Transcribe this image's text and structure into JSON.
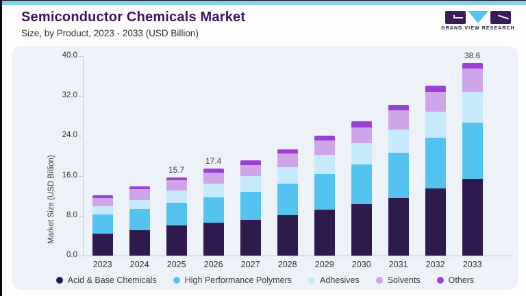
{
  "page": {
    "top_strip_color": "#85cfed",
    "card_bg": "#edf2f8",
    "title_color": "#3f1265"
  },
  "header": {
    "title": "Semiconductor Chemicals Market",
    "subtitle": "Size, by Product, 2023 - 2033 (USD Billion)"
  },
  "logo": {
    "text": "GRAND VIEW RESEARCH",
    "mark_dark_color": "#3a1d56",
    "mark_blue_color": "#56c4ef"
  },
  "chart_data": {
    "type": "bar",
    "stacked": true,
    "title": "Semiconductor Chemicals Market",
    "subtitle": "Size, by Product, 2023 - 2033 (USD Billion)",
    "xlabel": "",
    "ylabel": "Market Size (USD Billion)",
    "ylim": [
      0,
      40
    ],
    "ytick_labels": [
      "0.0",
      "8.0",
      "16.0",
      "24.0",
      "32.0",
      "40.0"
    ],
    "grid": false,
    "legend_position": "bottom",
    "categories": [
      "2023",
      "2024",
      "2025",
      "2026",
      "2027",
      "2028",
      "2029",
      "2030",
      "2031",
      "2032",
      "2033"
    ],
    "series": [
      {
        "name": "Acid & Base Chemicals",
        "color": "#2f1a4d",
        "values": [
          4.4,
          5.1,
          6.1,
          6.6,
          7.2,
          8.1,
          9.2,
          10.3,
          11.6,
          13.5,
          15.4
        ]
      },
      {
        "name": "High Performance Polymers",
        "color": "#55c3f0",
        "values": [
          3.8,
          4.2,
          4.5,
          5.1,
          5.6,
          6.3,
          7.1,
          8.0,
          9.0,
          10.1,
          11.3
        ]
      },
      {
        "name": "Adhesives",
        "color": "#c6e9fb",
        "values": [
          1.7,
          1.9,
          2.4,
          2.8,
          3.2,
          3.3,
          3.9,
          4.3,
          4.7,
          5.2,
          6.1
        ]
      },
      {
        "name": "Solvents",
        "color": "#cda5e8",
        "values": [
          1.7,
          2.1,
          2.1,
          2.1,
          2.2,
          2.8,
          2.9,
          3.1,
          3.8,
          4.1,
          4.7
        ]
      },
      {
        "name": "Others",
        "color": "#9a41d3",
        "values": [
          0.5,
          0.6,
          0.6,
          0.8,
          0.9,
          0.8,
          0.9,
          1.2,
          1.1,
          1.2,
          1.1
        ]
      }
    ],
    "totals_shown": [
      "",
      "",
      "15.7",
      "17.4",
      "",
      "",
      "",
      "",
      "",
      "",
      "38.6"
    ],
    "axis_color": "#c2c7d2"
  }
}
